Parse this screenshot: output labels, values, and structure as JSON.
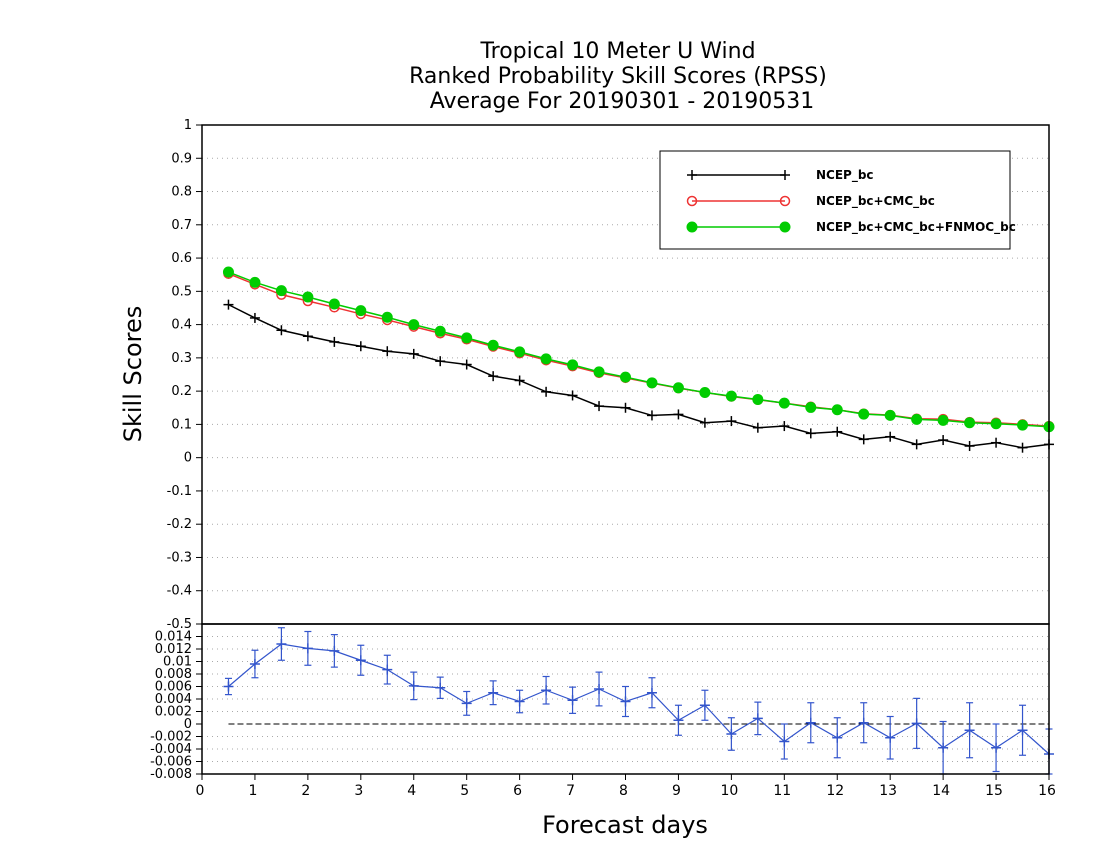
{
  "chart_data": [
    {
      "type": "line",
      "title": [
        "Tropical 10 Meter U Wind",
        "Ranked Probability Skill Scores (RPSS)",
        "Average For 20190301 - 20190531"
      ],
      "ylabel": "Skill Scores",
      "ylim": [
        -0.5,
        1
      ],
      "yticks": [
        "1",
        "0.9",
        "0.8",
        "0.7",
        "0.6",
        "0.5",
        "0.4",
        "0.3",
        "0.2",
        "0.1",
        "0",
        "-0.1",
        "-0.2",
        "-0.3",
        "-0.4",
        "-0.5"
      ],
      "grid": true,
      "legend_position": "top-right",
      "x": [
        0.5,
        1,
        1.5,
        2,
        2.5,
        3,
        3.5,
        4,
        4.5,
        5,
        5.5,
        6,
        6.5,
        7,
        7.5,
        8,
        8.5,
        9,
        9.5,
        10,
        10.5,
        11,
        11.5,
        12,
        12.5,
        13,
        13.5,
        14,
        14.5,
        15,
        15.5,
        16
      ],
      "series": [
        {
          "name": "NCEP_bc",
          "color": "#000000",
          "marker": "plus",
          "values": [
            0.46,
            0.42,
            0.383,
            0.365,
            0.348,
            0.335,
            0.32,
            0.312,
            0.29,
            0.28,
            0.245,
            0.232,
            0.198,
            0.187,
            0.155,
            0.15,
            0.127,
            0.13,
            0.105,
            0.11,
            0.09,
            0.095,
            0.073,
            0.078,
            0.055,
            0.063,
            0.04,
            0.053,
            0.035,
            0.045,
            0.03,
            0.04
          ]
        },
        {
          "name": "NCEP_bc+CMC_bc",
          "color": "#ee3333",
          "marker": "open-circle",
          "values": [
            0.553,
            0.521,
            0.49,
            0.471,
            0.452,
            0.432,
            0.414,
            0.394,
            0.374,
            0.356,
            0.334,
            0.314,
            0.293,
            0.275,
            0.255,
            0.24,
            0.224,
            0.209,
            0.196,
            0.184,
            0.174,
            0.164,
            0.153,
            0.144,
            0.132,
            0.128,
            0.117,
            0.116,
            0.107,
            0.105,
            0.1,
            0.095
          ]
        },
        {
          "name": "NCEP_bc+CMC_bc+FNMOC_bc",
          "color": "#00cc00",
          "marker": "filled-circle",
          "values": [
            0.558,
            0.527,
            0.502,
            0.483,
            0.462,
            0.442,
            0.422,
            0.4,
            0.38,
            0.36,
            0.338,
            0.318,
            0.297,
            0.279,
            0.258,
            0.242,
            0.225,
            0.21,
            0.196,
            0.185,
            0.175,
            0.164,
            0.151,
            0.144,
            0.131,
            0.127,
            0.115,
            0.112,
            0.105,
            0.102,
            0.098,
            0.093
          ]
        }
      ]
    },
    {
      "type": "line",
      "xlabel": "Forecast days",
      "xlim": [
        0,
        16
      ],
      "xticks": [
        "0",
        "1",
        "2",
        "3",
        "4",
        "5",
        "6",
        "7",
        "8",
        "9",
        "10",
        "11",
        "12",
        "13",
        "14",
        "15",
        "16"
      ],
      "ylim": [
        -0.008,
        0.016
      ],
      "yticks": [
        "0.014",
        "0.012",
        "0.01",
        "0.008",
        "0.006",
        "0.004",
        "0.002",
        "0",
        "-0.002",
        "-0.004",
        "-0.006",
        "-0.008"
      ],
      "grid": true,
      "zero_line": true,
      "x": [
        0.5,
        1,
        1.5,
        2,
        2.5,
        3,
        3.5,
        4,
        4.5,
        5,
        5.5,
        6,
        6.5,
        7,
        7.5,
        8,
        8.5,
        9,
        9.5,
        10,
        10.5,
        11,
        11.5,
        12,
        12.5,
        13,
        13.5,
        14,
        14.5,
        15,
        15.5,
        16
      ],
      "series": [
        {
          "color": "#3355cc",
          "marker": "plus",
          "values": [
            0.006,
            0.0096,
            0.0128,
            0.0121,
            0.0117,
            0.0102,
            0.0087,
            0.0061,
            0.0058,
            0.0033,
            0.005,
            0.0036,
            0.0054,
            0.0038,
            0.0056,
            0.0036,
            0.005,
            0.0006,
            0.003,
            -0.0016,
            0.0009,
            -0.0028,
            0.0002,
            -0.0022,
            0.0002,
            -0.0022,
            0.0001,
            -0.0038,
            -0.001,
            -0.0038,
            -0.001,
            -0.0048
          ],
          "error": [
            0.0013,
            0.0022,
            0.0026,
            0.0027,
            0.0026,
            0.0024,
            0.0023,
            0.0022,
            0.0017,
            0.0019,
            0.0019,
            0.0018,
            0.0022,
            0.0021,
            0.0027,
            0.0024,
            0.0024,
            0.0024,
            0.0024,
            0.0026,
            0.0026,
            0.0028,
            0.0032,
            0.0032,
            0.0032,
            0.0034,
            0.004,
            0.0042,
            0.0044,
            0.0038,
            0.004,
            0.004
          ]
        }
      ]
    }
  ]
}
